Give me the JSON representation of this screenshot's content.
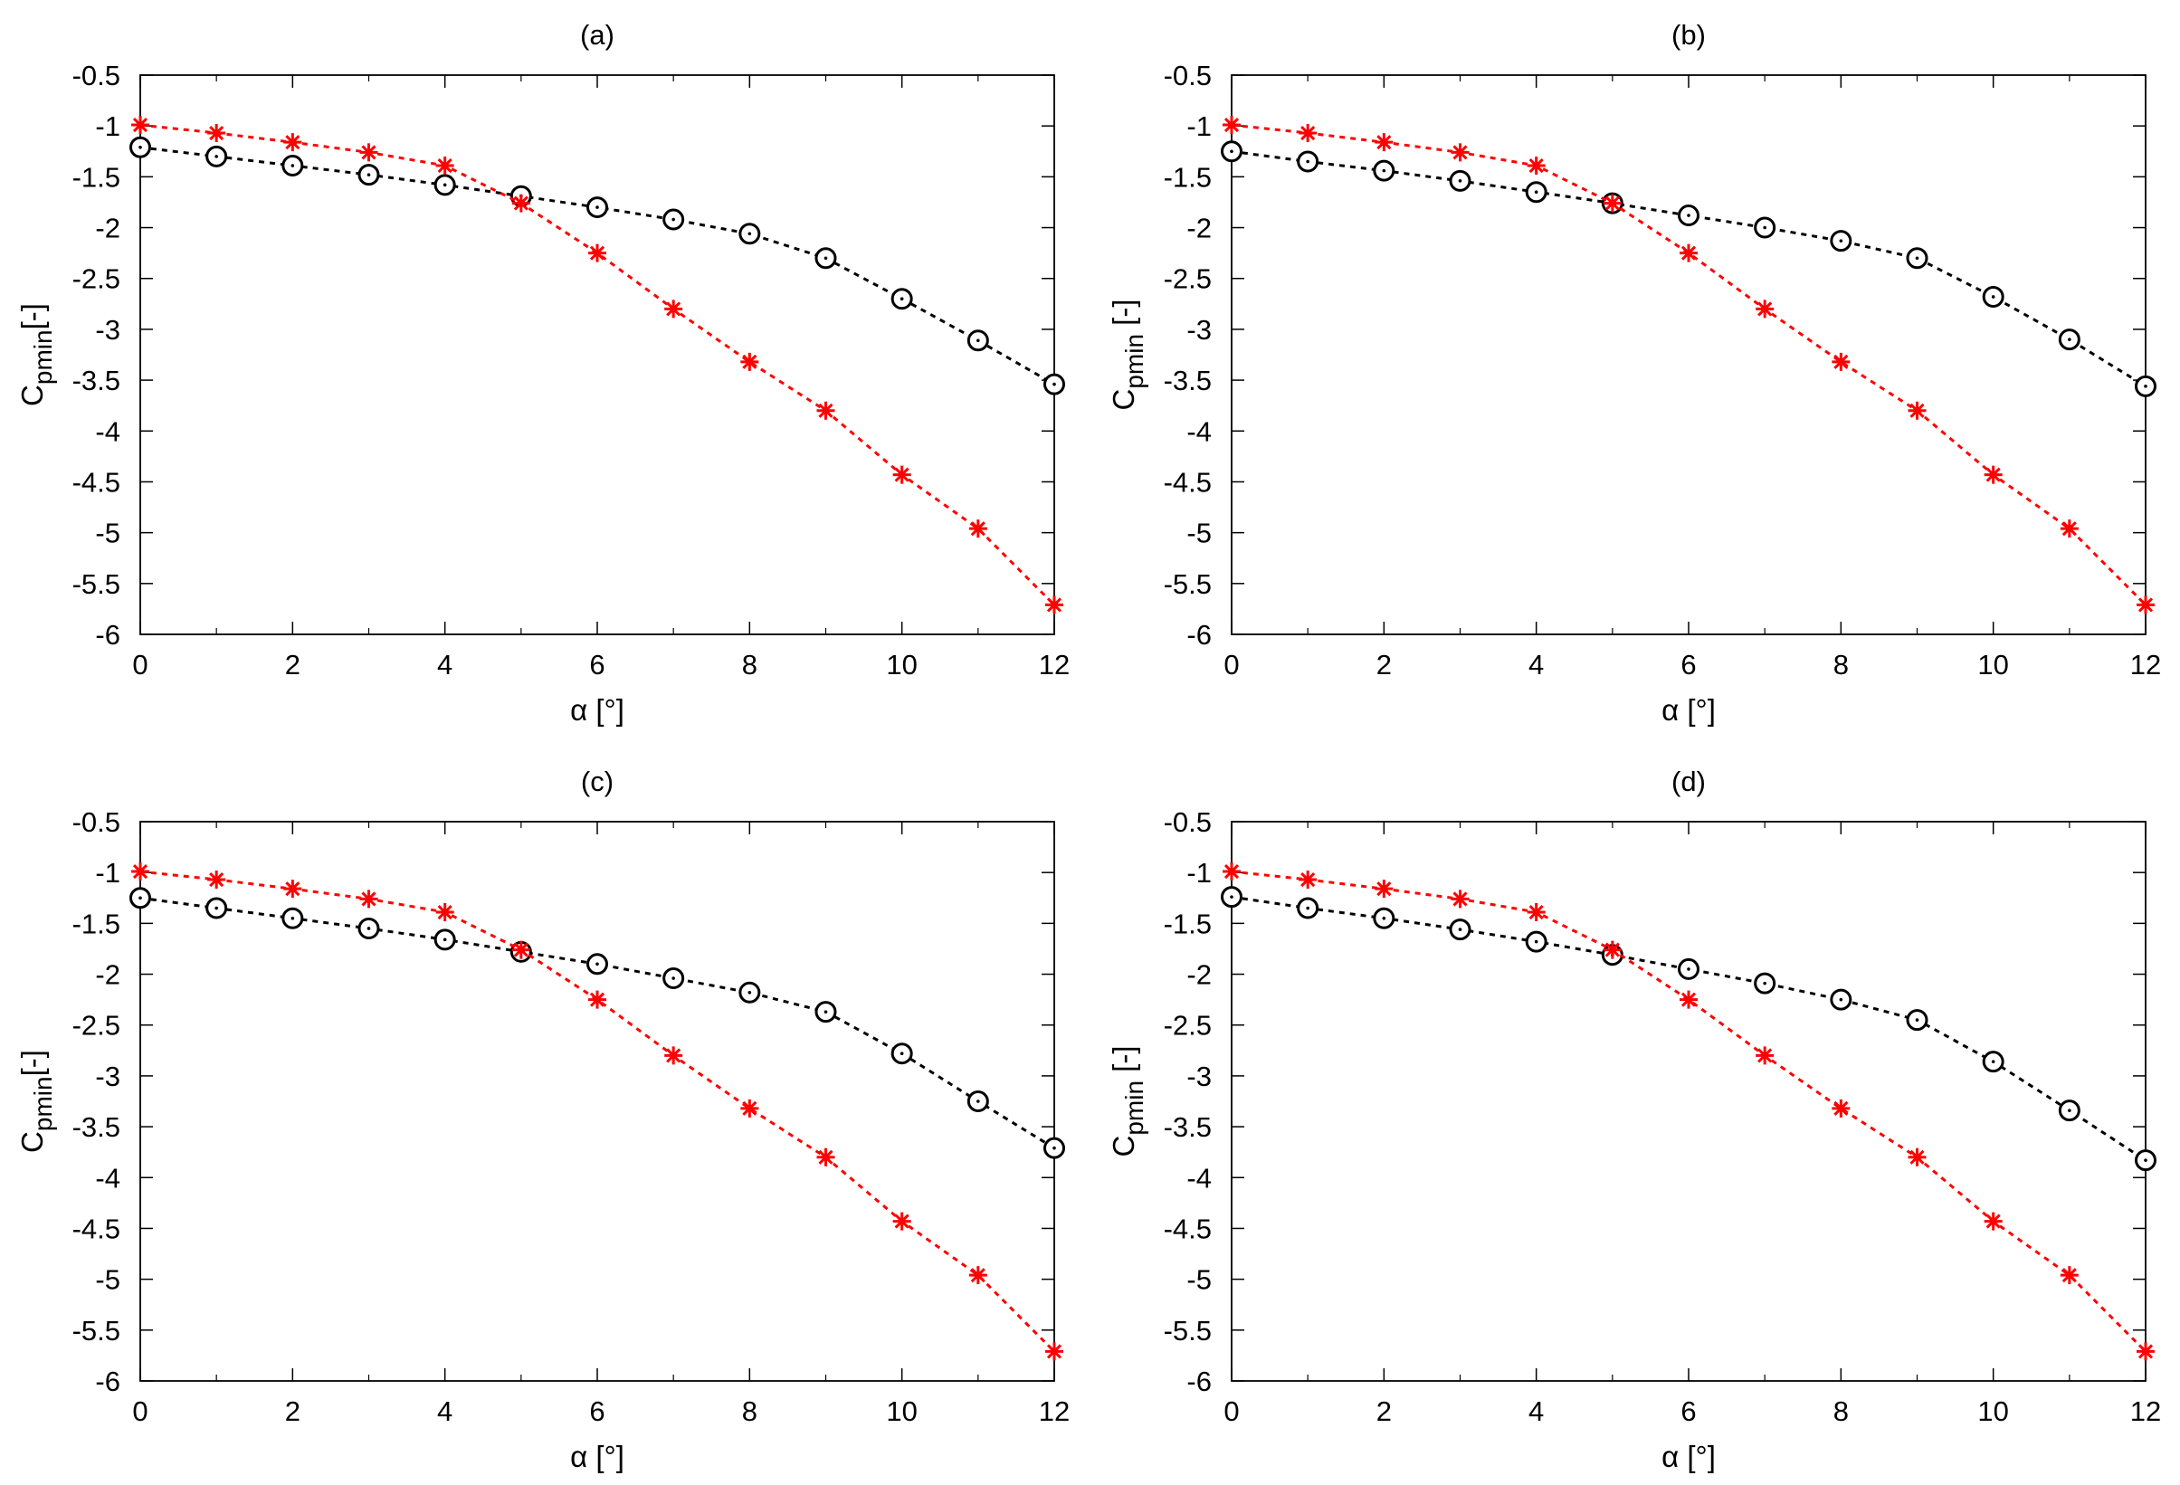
{
  "chart_data": [
    {
      "type": "line",
      "title": "(a)",
      "xlabel": "α [°]",
      "ylabel": {
        "base": "C",
        "sub": "pmin",
        "rest": "[-]"
      },
      "xlim": [
        0,
        12
      ],
      "ylim": [
        -6,
        -0.5
      ],
      "xticks": [
        0,
        2,
        4,
        6,
        8,
        10,
        12
      ],
      "yticks": [
        -0.5,
        -1,
        -1.5,
        -2,
        -2.5,
        -3,
        -3.5,
        -4,
        -4.5,
        -5,
        -5.5,
        -6
      ],
      "grid": false,
      "x": [
        0,
        1,
        2,
        3,
        4,
        5,
        6,
        7,
        8,
        9,
        10,
        11,
        12
      ],
      "series": [
        {
          "marker": "circle",
          "color": "#000000",
          "values": [
            -1.21,
            -1.3,
            -1.39,
            -1.48,
            -1.58,
            -1.69,
            -1.8,
            -1.92,
            -2.06,
            -2.3,
            -2.7,
            -3.11,
            -3.54
          ]
        },
        {
          "marker": "star",
          "color": "#ff0000",
          "values": [
            -0.99,
            -1.07,
            -1.16,
            -1.26,
            -1.39,
            -1.76,
            -2.25,
            -2.8,
            -3.32,
            -3.8,
            -4.43,
            -4.96,
            -5.71
          ]
        }
      ]
    },
    {
      "type": "line",
      "title": "(b)",
      "xlabel": "α [°]",
      "ylabel": {
        "base": "C",
        "sub": "pmin",
        "rest": " [-]"
      },
      "xlim": [
        0,
        12
      ],
      "ylim": [
        -6,
        -0.5
      ],
      "xticks": [
        0,
        2,
        4,
        6,
        8,
        10,
        12
      ],
      "yticks": [
        -0.5,
        -1,
        -1.5,
        -2,
        -2.5,
        -3,
        -3.5,
        -4,
        -4.5,
        -5,
        -5.5,
        -6
      ],
      "grid": false,
      "x": [
        0,
        1,
        2,
        3,
        4,
        5,
        6,
        7,
        8,
        9,
        10,
        11,
        12
      ],
      "series": [
        {
          "marker": "circle",
          "color": "#000000",
          "values": [
            -1.25,
            -1.35,
            -1.44,
            -1.54,
            -1.65,
            -1.76,
            -1.88,
            -2.0,
            -2.13,
            -2.3,
            -2.68,
            -3.1,
            -3.56
          ]
        },
        {
          "marker": "star",
          "color": "#ff0000",
          "values": [
            -0.99,
            -1.07,
            -1.16,
            -1.26,
            -1.39,
            -1.76,
            -2.25,
            -2.8,
            -3.32,
            -3.8,
            -4.43,
            -4.96,
            -5.71
          ]
        }
      ]
    },
    {
      "type": "line",
      "title": "(c)",
      "xlabel": "α [°]",
      "ylabel": {
        "base": "C",
        "sub": "pmin",
        "rest": "[-]"
      },
      "xlim": [
        0,
        12
      ],
      "ylim": [
        -6,
        -0.5
      ],
      "xticks": [
        0,
        2,
        4,
        6,
        8,
        10,
        12
      ],
      "yticks": [
        -0.5,
        -1,
        -1.5,
        -2,
        -2.5,
        -3,
        -3.5,
        -4,
        -4.5,
        -5,
        -5.5,
        -6
      ],
      "grid": false,
      "x": [
        0,
        1,
        2,
        3,
        4,
        5,
        6,
        7,
        8,
        9,
        10,
        11,
        12
      ],
      "series": [
        {
          "marker": "circle",
          "color": "#000000",
          "values": [
            -1.25,
            -1.35,
            -1.45,
            -1.55,
            -1.66,
            -1.78,
            -1.9,
            -2.04,
            -2.18,
            -2.37,
            -2.78,
            -3.25,
            -3.71
          ]
        },
        {
          "marker": "star",
          "color": "#ff0000",
          "values": [
            -0.99,
            -1.07,
            -1.16,
            -1.26,
            -1.39,
            -1.76,
            -2.25,
            -2.8,
            -3.32,
            -3.8,
            -4.43,
            -4.96,
            -5.71
          ]
        }
      ]
    },
    {
      "type": "line",
      "title": "(d)",
      "xlabel": "α [°]",
      "ylabel": {
        "base": "C",
        "sub": "pmin",
        "rest": " [-]"
      },
      "xlim": [
        0,
        12
      ],
      "ylim": [
        -6,
        -0.5
      ],
      "xticks": [
        0,
        2,
        4,
        6,
        8,
        10,
        12
      ],
      "yticks": [
        -0.5,
        -1,
        -1.5,
        -2,
        -2.5,
        -3,
        -3.5,
        -4,
        -4.5,
        -5,
        -5.5,
        -6
      ],
      "grid": false,
      "x": [
        0,
        1,
        2,
        3,
        4,
        5,
        6,
        7,
        8,
        9,
        10,
        11,
        12
      ],
      "series": [
        {
          "marker": "circle",
          "color": "#000000",
          "values": [
            -1.24,
            -1.35,
            -1.45,
            -1.56,
            -1.68,
            -1.81,
            -1.95,
            -2.09,
            -2.25,
            -2.45,
            -2.86,
            -3.34,
            -3.83
          ]
        },
        {
          "marker": "star",
          "color": "#ff0000",
          "values": [
            -0.99,
            -1.07,
            -1.16,
            -1.26,
            -1.39,
            -1.76,
            -2.25,
            -2.8,
            -3.32,
            -3.8,
            -4.43,
            -4.96,
            -5.71
          ]
        }
      ]
    }
  ]
}
